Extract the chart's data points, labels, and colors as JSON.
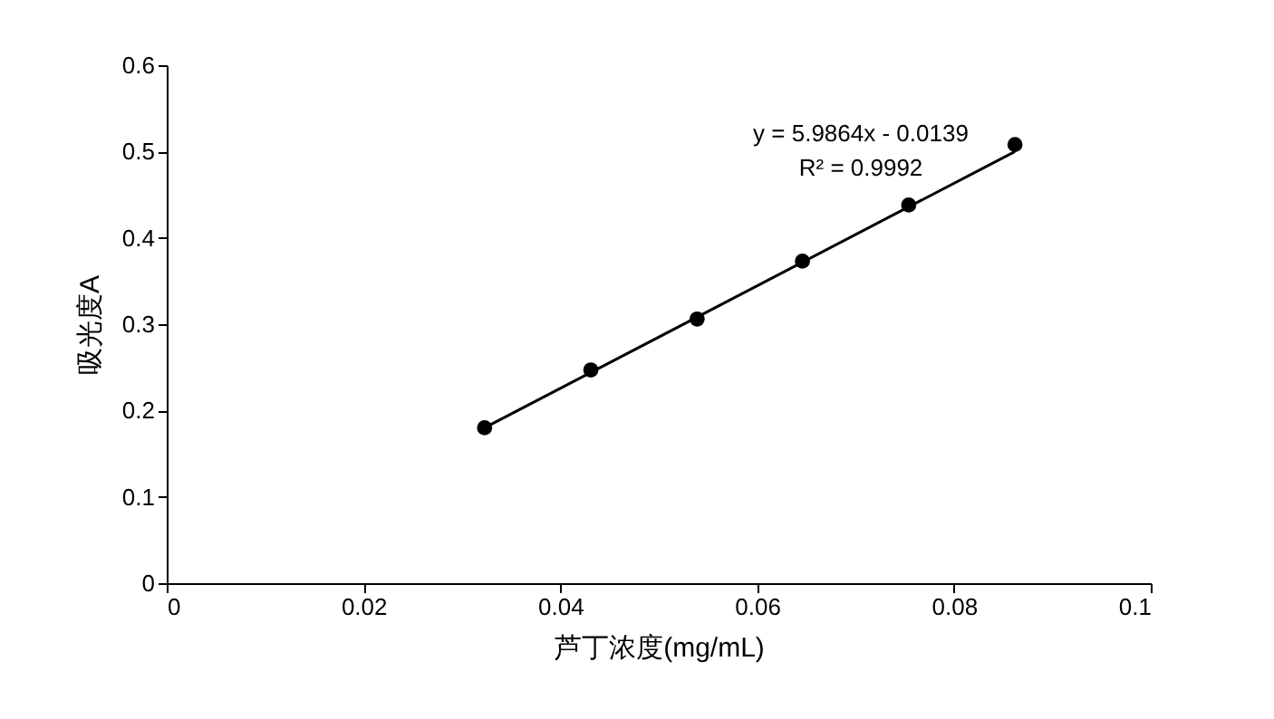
{
  "chart_data": {
    "type": "scatter",
    "xlabel": "芦丁浓度(mg/mL)",
    "ylabel": "吸光度A",
    "annotations": [
      "y = 5.9864x - 0.0139",
      "R² = 0.9992"
    ],
    "xlim": [
      0,
      0.1
    ],
    "xticks": [
      0,
      0.02,
      0.04,
      0.06,
      0.08,
      0.1
    ],
    "ylim": [
      0,
      0.6
    ],
    "yticks": [
      0,
      0.1,
      0.2,
      0.3,
      0.4,
      0.5,
      0.6
    ],
    "grid": false,
    "marker": "circle",
    "series": [
      {
        "color": "#000000",
        "x": [
          0.0323,
          0.0431,
          0.0539,
          0.0646,
          0.0754,
          0.0862
        ],
        "values": [
          0.18,
          0.247,
          0.306,
          0.373,
          0.438,
          0.508
        ]
      },
      {
        "type": "line",
        "marker": "none",
        "color": "#000000",
        "x": [
          0.0323,
          0.0862
        ],
        "values": [
          0.18,
          0.5
        ]
      }
    ]
  }
}
